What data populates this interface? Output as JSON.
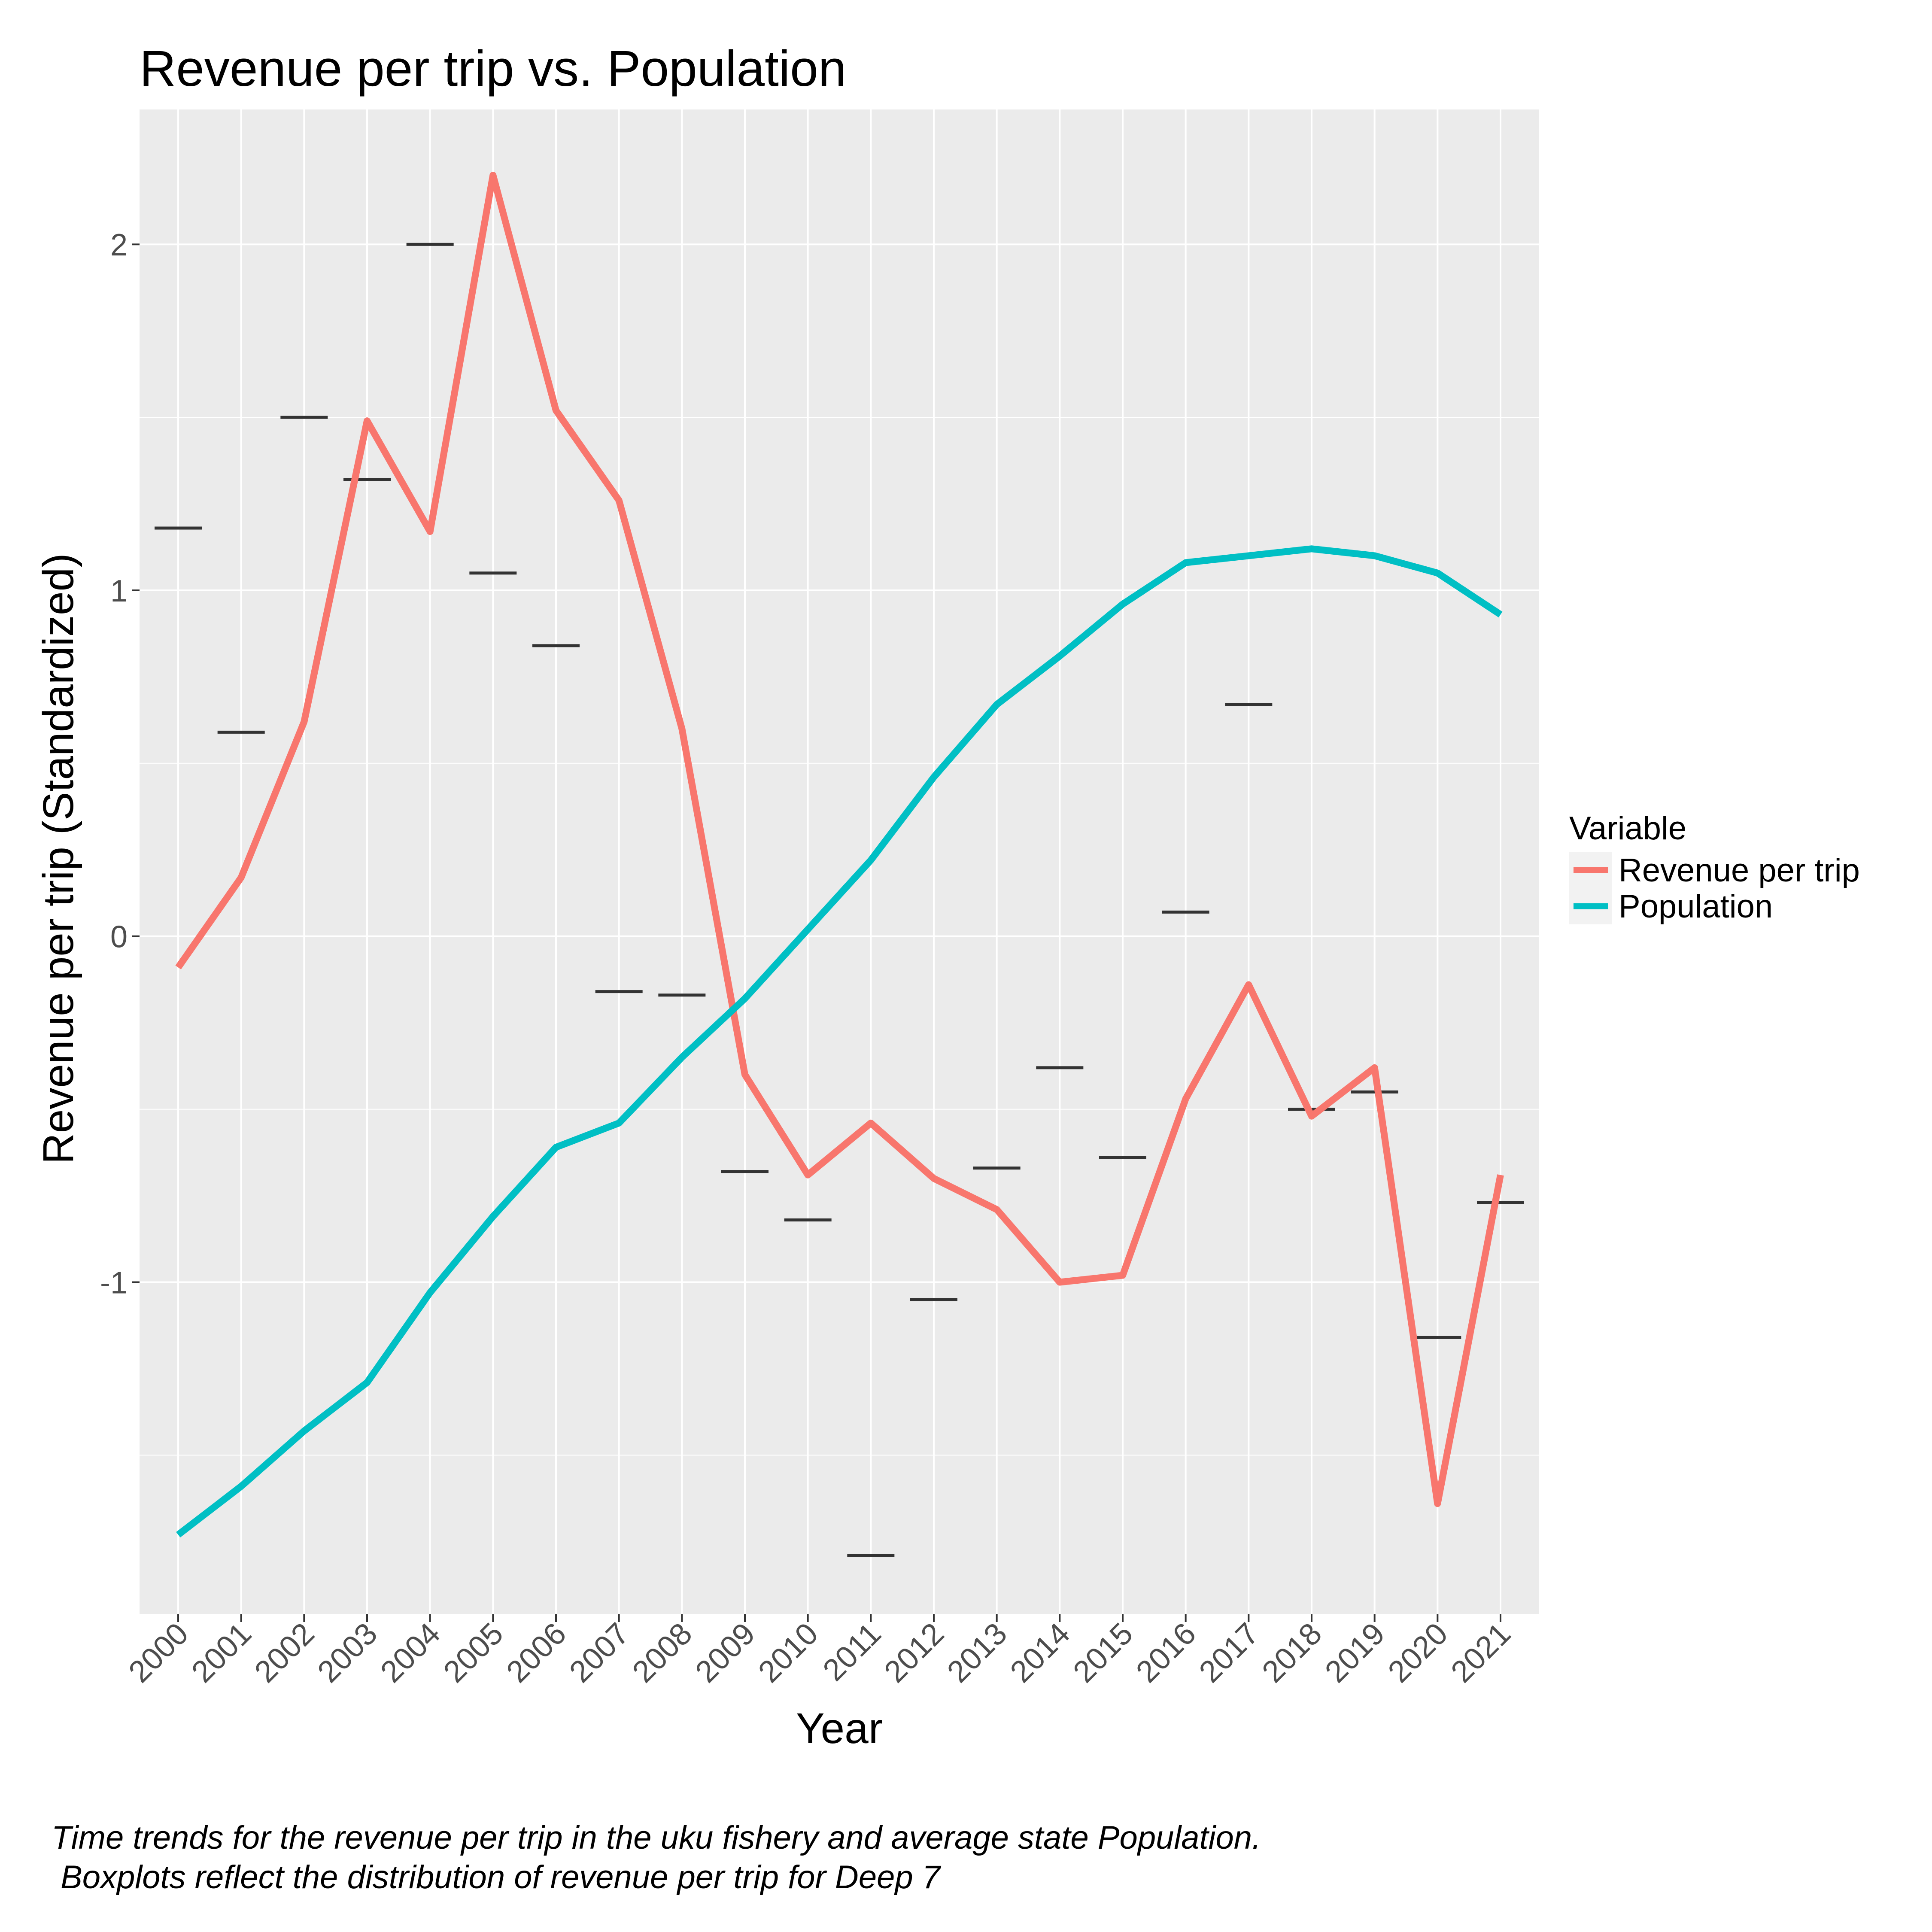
{
  "chart_data": {
    "type": "line",
    "title": "Revenue per trip vs. Population",
    "xlabel": "Year",
    "ylabel": "Revenue per trip (Standardized)",
    "categories": [
      "2000",
      "2001",
      "2002",
      "2003",
      "2004",
      "2005",
      "2006",
      "2007",
      "2008",
      "2009",
      "2010",
      "2011",
      "2012",
      "2013",
      "2014",
      "2015",
      "2016",
      "2017",
      "2018",
      "2019",
      "2020",
      "2021"
    ],
    "ylim": [
      -1.96,
      2.39
    ],
    "yticks": [
      -1,
      0,
      1,
      2
    ],
    "ytick_labels": [
      "-1",
      "0",
      "1",
      "2"
    ],
    "grid": true,
    "legend": {
      "title": "Variable",
      "position": "right"
    },
    "series": [
      {
        "name": "Revenue per trip",
        "color": "#F8766D",
        "values": [
          -0.09,
          0.17,
          0.62,
          1.49,
          1.17,
          2.2,
          1.52,
          1.26,
          0.6,
          -0.4,
          -0.69,
          -0.54,
          -0.7,
          -0.79,
          -1.0,
          -0.98,
          -0.47,
          -0.14,
          -0.52,
          -0.38,
          -1.64,
          -0.69
        ]
      },
      {
        "name": "Population",
        "color": "#00BFC4",
        "values": [
          -1.73,
          -1.59,
          -1.43,
          -1.29,
          -1.03,
          -0.81,
          -0.61,
          -0.54,
          -0.35,
          -0.18,
          0.02,
          0.22,
          0.46,
          0.67,
          0.81,
          0.96,
          1.08,
          1.1,
          1.12,
          1.1,
          1.05,
          0.93
        ]
      }
    ],
    "boxplot_medians": {
      "name": "Deep 7",
      "color": "#333333",
      "values": [
        1.18,
        0.59,
        1.5,
        1.32,
        2.0,
        1.05,
        0.84,
        -0.16,
        -0.17,
        -0.68,
        -0.82,
        -1.79,
        -1.05,
        -0.67,
        -0.38,
        -0.64,
        0.07,
        0.67,
        -0.5,
        -0.45,
        -1.16,
        -0.77
      ]
    }
  },
  "caption": {
    "line1": "Time trends for the revenue per trip in the uku fishery and average state Population.",
    "line2": " Boxplots reflect the distribution of revenue per trip for Deep 7"
  }
}
